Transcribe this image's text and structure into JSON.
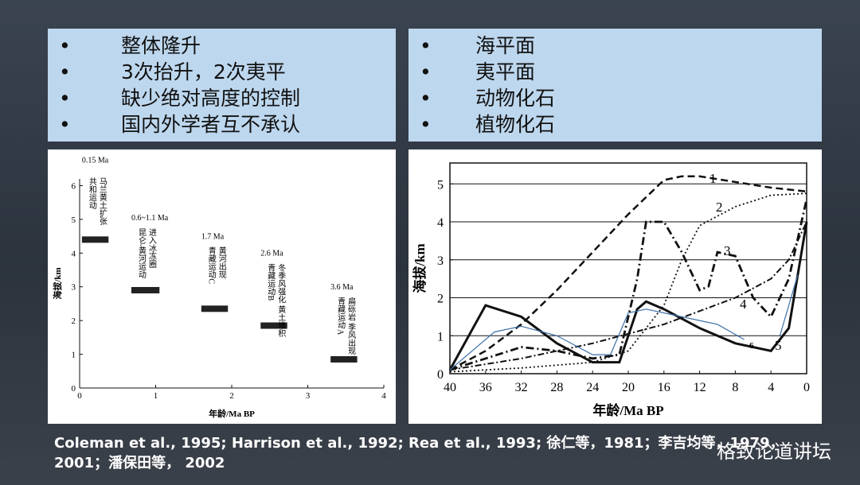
{
  "left_box": {
    "bullets": [
      "整体隆升",
      "3次抬升，2次夷平",
      "缺少绝对高度的控制",
      "国内外学者互不承认"
    ]
  },
  "right_box": {
    "bullets": [
      "海平面",
      "夷平面",
      "动物化石",
      "植物化石"
    ]
  },
  "citation": {
    "lines": [
      "Coleman et al., 1995; Harrison et al., 1992; Rea et al., 1993; 徐仁等，1981；李吉均等，1979，",
      "2001；潘保田等， 2002"
    ]
  },
  "watermark": "格致论道讲坛",
  "chart_data": [
    {
      "type": "interval",
      "xlabel": "年龄/Ma BP",
      "ylabel": "海拔/km",
      "xlim": [
        0,
        4
      ],
      "xticks": [
        0,
        1,
        2,
        3,
        4
      ],
      "ylim": [
        0,
        6.2
      ],
      "yticks": [
        0,
        1,
        2,
        3,
        4,
        5,
        6
      ],
      "bars": [
        {
          "x": [
            0.03,
            0.38
          ],
          "y": 4.4,
          "age": "0.15 Ma",
          "events": [
            "共和运动",
            "马兰黄土扩张"
          ]
        },
        {
          "x": [
            0.68,
            1.05
          ],
          "y": 2.9,
          "age": "0.6~1.1 Ma",
          "events": [
            "昆仑-黄河运动",
            "进入冰冻圈"
          ]
        },
        {
          "x": [
            1.6,
            1.95
          ],
          "y": 2.35,
          "age": "1.7 Ma",
          "events": [
            "青藏运动C",
            "黄河出现"
          ]
        },
        {
          "x": [
            2.38,
            2.73
          ],
          "y": 1.85,
          "age": "2.6 Ma",
          "events": [
            "青藏运动B",
            "冬季风强化 黄土堆积"
          ]
        },
        {
          "x": [
            3.3,
            3.65
          ],
          "y": 0.85,
          "age": "3.6 Ma",
          "events": [
            "青藏运动A",
            "扁砾岩 季风出现"
          ]
        }
      ],
      "color": "#222"
    },
    {
      "type": "line",
      "xlabel": "年龄/Ma BP",
      "ylabel": "海拔/km",
      "xlim": [
        40,
        0
      ],
      "xticks": [
        40,
        36,
        32,
        28,
        24,
        20,
        16,
        12,
        8,
        4,
        0
      ],
      "ylim": [
        0,
        5.55
      ],
      "yticks": [
        0,
        1,
        2,
        3,
        4,
        5
      ],
      "grid": true,
      "series": [
        {
          "name": "1",
          "color": "#111",
          "style": "dashed",
          "x": [
            40,
            36,
            32,
            28,
            24,
            20,
            16,
            14,
            12,
            8,
            4,
            0
          ],
          "values": [
            0.1,
            0.6,
            1.3,
            2.2,
            3.2,
            4.2,
            5.1,
            5.2,
            5.2,
            5.05,
            4.9,
            4.8
          ]
        },
        {
          "name": "2",
          "color": "#111",
          "style": "dotted",
          "x": [
            40,
            32,
            24,
            20,
            16,
            14,
            12,
            8,
            4,
            0
          ],
          "values": [
            0.05,
            0.15,
            0.3,
            0.6,
            1.8,
            3.0,
            3.9,
            4.4,
            4.7,
            4.75
          ]
        },
        {
          "name": "3",
          "color": "#111",
          "style": "dashdot",
          "x": [
            40,
            36,
            32,
            28,
            24,
            21,
            19,
            18,
            16,
            14,
            12,
            11,
            10,
            8,
            6,
            4,
            2,
            0
          ],
          "values": [
            0.1,
            0.4,
            0.7,
            0.6,
            0.4,
            0.5,
            2.5,
            4.0,
            4.0,
            3.2,
            2.2,
            2.3,
            3.2,
            3.1,
            2.0,
            1.5,
            2.5,
            4.6
          ]
        },
        {
          "name": "4",
          "color": "#111",
          "style": "dashdot-thin",
          "x": [
            40,
            32,
            24,
            16,
            8,
            4,
            2,
            0
          ],
          "values": [
            0.1,
            0.4,
            0.8,
            1.3,
            2.0,
            2.5,
            3.0,
            4.0
          ]
        },
        {
          "name": "5",
          "color": "#111",
          "style": "solid",
          "x": [
            40,
            36,
            32,
            28,
            24,
            21,
            19,
            18,
            16,
            12,
            8,
            4,
            2,
            0
          ],
          "values": [
            0.1,
            1.8,
            1.5,
            0.8,
            0.3,
            0.3,
            1.7,
            1.9,
            1.7,
            1.2,
            0.8,
            0.6,
            1.2,
            4.0
          ]
        },
        {
          "name": "6",
          "color": "#3a6fa8",
          "style": "thin",
          "x": [
            40,
            35,
            32,
            28,
            24,
            22,
            20,
            18,
            14,
            10,
            7,
            5,
            3,
            1
          ],
          "values": [
            0.1,
            1.1,
            1.25,
            1.0,
            0.5,
            0.5,
            1.6,
            1.7,
            1.5,
            1.3,
            0.9,
            null,
            1.0,
            2.6
          ]
        }
      ]
    }
  ]
}
